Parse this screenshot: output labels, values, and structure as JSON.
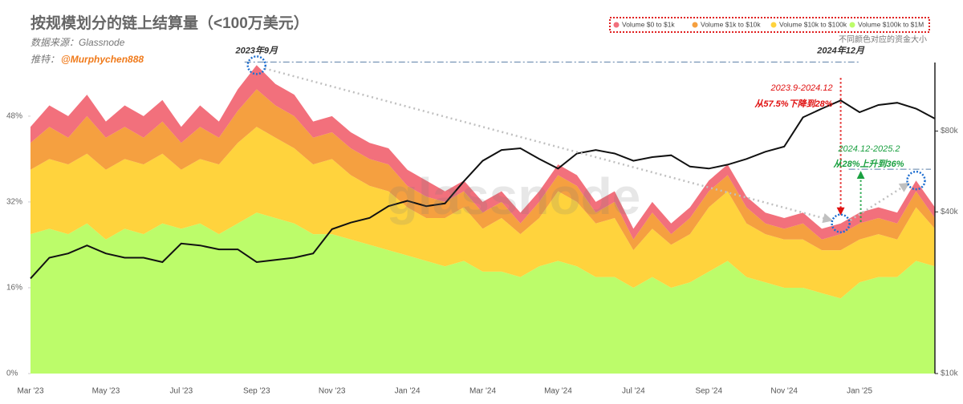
{
  "chart_data": {
    "type": "area",
    "stacked": true,
    "title": "按规模划分的链上结算量（<100万美元）",
    "source": "数据来源：Glassnode",
    "twitter_label": "推特：",
    "twitter_handle": "@Murphychen888",
    "legend_note": "不同颜色对应的资金大小",
    "watermark": "glassnode",
    "legend": "top-right",
    "grid": false,
    "categories": [
      "Mar '23",
      null,
      null,
      null,
      "May '23",
      null,
      null,
      null,
      "Jul '23",
      null,
      null,
      null,
      "Sep '23",
      null,
      null,
      null,
      "Nov '23",
      null,
      null,
      null,
      "Jan '24",
      null,
      null,
      null,
      "Mar '24",
      null,
      null,
      null,
      "May '24",
      null,
      null,
      null,
      "Jul '24",
      null,
      null,
      null,
      "Sep '24",
      null,
      null,
      null,
      "Nov '24",
      null,
      null,
      null,
      "Jan '25",
      null,
      null,
      null,
      null
    ],
    "ylim": [
      0,
      58
    ],
    "yticks": [
      {
        "value": 0,
        "label": "0%"
      },
      {
        "value": 16,
        "label": "16%"
      },
      {
        "value": 32,
        "label": "32%"
      },
      {
        "value": 48,
        "label": "48%"
      }
    ],
    "y2lim": [
      10000,
      144000
    ],
    "y2log": true,
    "y2ticks": [
      {
        "value": 10000,
        "label": "$10k"
      },
      {
        "value": 40000,
        "label": "$40k"
      },
      {
        "value": 80000,
        "label": "$80k"
      }
    ],
    "series": [
      {
        "name": "Volume $0 to $1k",
        "color": "#f2707c",
        "values": [
          3,
          4,
          4,
          4,
          3,
          4,
          4,
          4,
          3,
          4,
          3,
          4,
          4.5,
          4,
          4,
          3,
          3,
          3,
          3,
          3,
          3,
          3,
          2,
          2,
          2,
          2,
          2,
          2,
          2,
          2,
          2,
          2,
          2,
          2,
          2,
          2,
          2,
          2,
          2,
          2,
          2,
          2,
          2,
          2,
          2,
          2,
          2,
          2,
          2
        ]
      },
      {
        "name": "Volume $1k to $10k",
        "color": "#f5a040",
        "values": [
          5,
          6,
          5,
          7,
          6,
          6,
          5,
          6,
          5,
          6,
          5,
          6,
          7,
          6,
          6,
          5,
          5,
          5,
          5,
          5,
          4,
          4,
          3,
          3,
          3,
          3,
          2,
          3,
          3,
          3,
          2,
          3,
          2,
          3,
          2,
          3,
          3,
          3,
          3,
          2,
          2,
          3,
          2,
          3,
          3,
          3,
          3,
          3,
          2
        ]
      },
      {
        "name": "Volume $10k to $100k",
        "color": "#ffd33d",
        "values": [
          12,
          13,
          13,
          13,
          13,
          13,
          13,
          13,
          11,
          12,
          13,
          15,
          16,
          15,
          14,
          13,
          14,
          12,
          11,
          11,
          9,
          8,
          9,
          10,
          8,
          10,
          8,
          9,
          13,
          12,
          10,
          11,
          7,
          9,
          8,
          9,
          12,
          13,
          10,
          9,
          9,
          9,
          8,
          9,
          8,
          8,
          7,
          10,
          7
        ]
      },
      {
        "name": "Volume $100k to $1M",
        "color": "#bcfc6a",
        "values": [
          26,
          27,
          26,
          28,
          25,
          27,
          26,
          28,
          27,
          28,
          26,
          28,
          30,
          29,
          28,
          26,
          26,
          25,
          24,
          23,
          22,
          21,
          20,
          21,
          19,
          19,
          18,
          20,
          21,
          20,
          18,
          18,
          16,
          18,
          16,
          17,
          19,
          21,
          18,
          17,
          16,
          16,
          15,
          14,
          17,
          18,
          18,
          21,
          20
        ]
      },
      {
        "color": "#111111",
        "axis": "y2",
        "values": [
          22600,
          27000,
          28000,
          30000,
          28000,
          27000,
          27000,
          26000,
          30500,
          30000,
          29000,
          29000,
          26000,
          26500,
          27000,
          28000,
          34500,
          36500,
          38000,
          42000,
          44000,
          42000,
          43000,
          52000,
          62000,
          68000,
          69000,
          63000,
          58000,
          66000,
          68000,
          66000,
          62000,
          64000,
          65000,
          59000,
          58000,
          60000,
          63000,
          67000,
          70000,
          90000,
          97000,
          104000,
          94000,
          100000,
          102000,
          97000,
          89000
        ]
      }
    ],
    "annotations": [
      "2023年9月",
      "2024年12月",
      "2023.9-2024.12",
      "从57.5%下降到28%",
      "2024.12-2025.2",
      "从28%上升到36%"
    ]
  }
}
